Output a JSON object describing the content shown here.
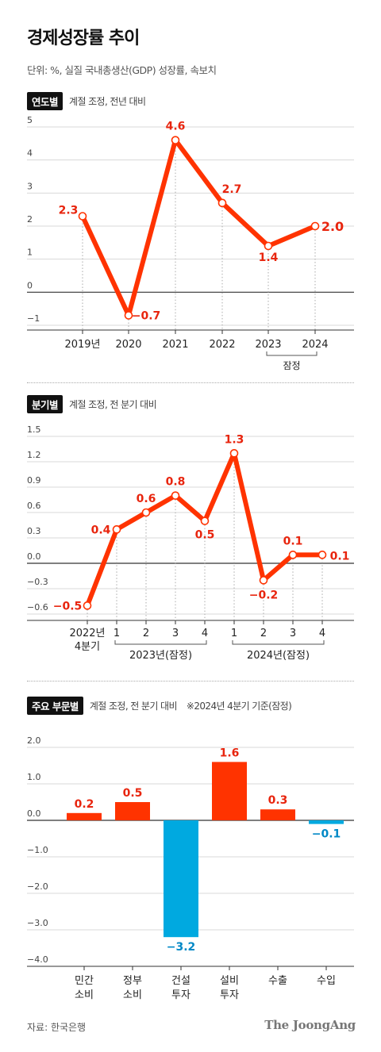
{
  "title": "경제성장률 추이",
  "unit": "단위: %, 실질 국내총생산(GDP) 성장률, 속보치",
  "source": "자료: 한국은행",
  "logo": "The JoongAng",
  "colors": {
    "line": "#FF3300",
    "positive": "#FF3300",
    "negative": "#00A9E0",
    "label_red": "#E8250E",
    "label_blue": "#0088C6"
  },
  "section1": {
    "tag": "연도별",
    "note": "계절 조정, 전년 대비"
  },
  "section2": {
    "tag": "분기별",
    "note": "계절 조정, 전 분기 대비"
  },
  "section3": {
    "tag": "주요 부문별",
    "note": "계절 조정, 전 분기 대비",
    "note2": "※2024년 4분기 기준(잠정)"
  },
  "chart_data": [
    {
      "type": "line",
      "categories": [
        "2019년",
        "2020",
        "2021",
        "2022",
        "2023",
        "2024"
      ],
      "values": [
        2.3,
        -0.7,
        4.6,
        2.7,
        1.4,
        2.0
      ],
      "value_labels": [
        "2.3",
        "−0.7",
        "4.6",
        "2.7",
        "1.4",
        "2.0"
      ],
      "yticks": [
        "5",
        "4",
        "3",
        "2",
        "1",
        "0",
        "−1"
      ],
      "ylim": [
        -1,
        5
      ],
      "bracket_label": "잠정",
      "bracket_covers": [
        "2023",
        "2024"
      ]
    },
    {
      "type": "line",
      "categories": [
        "2022년 4분기",
        "1",
        "2",
        "3",
        "4",
        "1",
        "2",
        "3",
        "4"
      ],
      "category_first_lines": [
        "2022년",
        "4분기"
      ],
      "values": [
        -0.5,
        0.4,
        0.6,
        0.8,
        0.5,
        1.3,
        -0.2,
        0.1,
        0.1
      ],
      "value_labels": [
        "−0.5",
        "0.4",
        "0.6",
        "0.8",
        "0.5",
        "1.3",
        "−0.2",
        "0.1",
        "0.1"
      ],
      "yticks": [
        "1.5",
        "1.2",
        "0.9",
        "0.6",
        "0.3",
        "0.0",
        "−0.3",
        "−0.6"
      ],
      "ylim": [
        -0.6,
        1.5
      ],
      "groups": [
        {
          "label": "2023년(잠정)",
          "from": 1,
          "to": 4
        },
        {
          "label": "2024년(잠정)",
          "from": 5,
          "to": 8
        }
      ]
    },
    {
      "type": "bar",
      "categories": [
        [
          "민간",
          "소비"
        ],
        [
          "정부",
          "소비"
        ],
        [
          "건설",
          "투자"
        ],
        [
          "설비",
          "투자"
        ],
        [
          "수출"
        ],
        [
          "수입"
        ]
      ],
      "values": [
        0.2,
        0.5,
        -3.2,
        1.6,
        0.3,
        -0.1
      ],
      "value_labels": [
        "0.2",
        "0.5",
        "−3.2",
        "1.6",
        "0.3",
        "−0.1"
      ],
      "yticks": [
        "2.0",
        "1.0",
        "0.0",
        "−1.0",
        "−2.0",
        "−3.0",
        "−4.0"
      ],
      "ylim": [
        -4,
        2
      ]
    }
  ]
}
